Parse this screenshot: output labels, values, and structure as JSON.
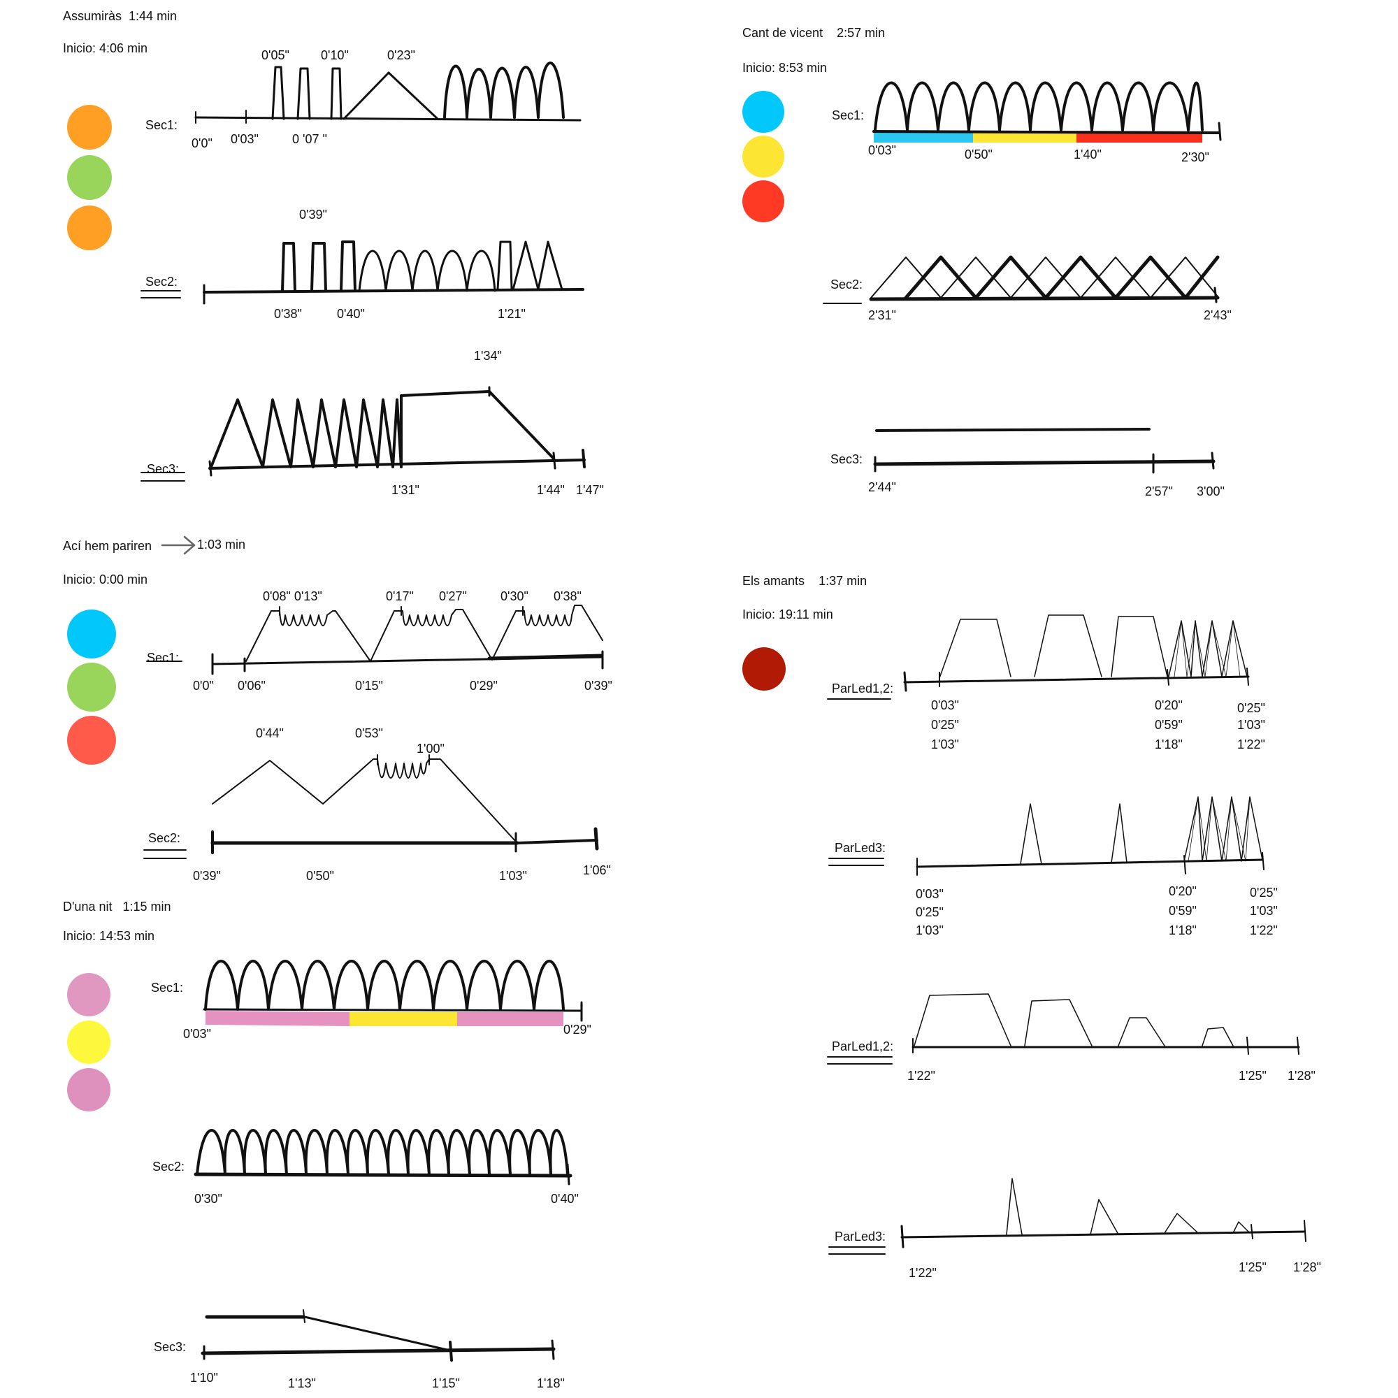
{
  "songs": [
    {
      "title": "Assumiràs",
      "duration": "1:44 min",
      "start": "Inicio: 4:06 min",
      "colors": [
        "#FF9F24",
        "#98D55A",
        "#FF9F24"
      ],
      "sections": [
        {
          "label": "Sec1:",
          "ticks": [
            "0'0\"",
            "0'03\"",
            "0 '07 \""
          ],
          "marks": [
            "0'05\"",
            "0'10\"",
            "0'23\""
          ]
        },
        {
          "label": "Sec2:",
          "ticks": [
            "0'38\"",
            "0'40\"",
            "1'21\""
          ],
          "marks": [
            "0'39\""
          ]
        },
        {
          "label": "Sec3:",
          "ticks": [
            "1'31\"",
            "1'44\"",
            "1'47\""
          ],
          "marks": [
            "1'34\""
          ]
        }
      ]
    },
    {
      "title": "Cant de vicent",
      "duration": "2:57 min",
      "start": "Inicio:  8:53 min",
      "colors": [
        "#00C8FA",
        "#FDE534",
        "#FF3A24"
      ],
      "sections": [
        {
          "label": "Sec1:",
          "ticks": [
            "0'03\"",
            "0'50\"",
            "1'40\"",
            "2'30\""
          ],
          "bands": [
            "#2CC7F0",
            "#FDE534",
            "#F8301C"
          ]
        },
        {
          "label": "Sec2:",
          "ticks": [
            "2'31\"",
            "2'43\""
          ]
        },
        {
          "label": "Sec3:",
          "ticks": [
            "2'44\"",
            "2'57\"",
            "3'00\""
          ]
        }
      ]
    },
    {
      "title": "Ací hem pariren",
      "duration": "1:03 min",
      "start": "Inicio: 0:00 min",
      "colors": [
        "#00C8FA",
        "#98D55A",
        "#FF5A4A"
      ],
      "sections": [
        {
          "label": "Sec1:",
          "ticks": [
            "0'0\"",
            "0'06\"",
            "0'15\"",
            "0'29\"",
            "0'39\""
          ],
          "marks": [
            "0'08\" 0'13\"",
            "0'17\"",
            "0'27\"",
            "0'30\"",
            "0'38\""
          ]
        },
        {
          "label": "Sec2:",
          "ticks": [
            "0'39\"",
            "0'50\"",
            "1'03\"",
            "1'06\""
          ],
          "marks": [
            "0'44\"",
            "0'53\"",
            "1'00\""
          ]
        }
      ]
    },
    {
      "title": "D'una nit",
      "duration": "1:15 min",
      "start": "Inicio: 14:53 min",
      "colors": [
        "#E097C0",
        "#FDF83C",
        "#DD91BC"
      ],
      "sections": [
        {
          "label": "Sec1:",
          "ticks": [
            "0'03\"",
            "0'29\""
          ],
          "bands": [
            "#E592C1",
            "#FDE534",
            "#E592C1"
          ]
        },
        {
          "label": "Sec2:",
          "ticks": [
            "0'30\"",
            "0'40\""
          ]
        },
        {
          "label": "Sec3:",
          "ticks": [
            "1'10\"",
            "1'13\"",
            "1'15\"",
            "1'18\""
          ]
        }
      ]
    },
    {
      "title": "Els amants",
      "duration": "1:37 min",
      "start": "Inicio:  19:11 min",
      "colors": [
        "#B11A05"
      ],
      "sections": [
        {
          "label": "ParLed1,2:",
          "ticks": [
            [
              "0'03\"",
              "0'25\"",
              "1'03\""
            ],
            [
              "0'20\"",
              "0'59\"",
              "1'18\""
            ],
            [
              "0'25\"",
              "1'03\"",
              "1'22\""
            ]
          ]
        },
        {
          "label": "ParLed3:",
          "ticks": [
            [
              "0'03\"",
              "0'25\"",
              "1'03\""
            ],
            [
              "0'20\"",
              "0'59\"",
              "1'18\""
            ],
            [
              "0'25\"",
              "1'03\"",
              "1'22\""
            ]
          ]
        },
        {
          "label": "ParLed1,2:",
          "ticks": [
            "1'22\"",
            "1'25\"",
            "1'28\""
          ]
        },
        {
          "label": "ParLed3:",
          "ticks": [
            "1'22\"",
            "1'25\"",
            "1'28\""
          ]
        }
      ]
    }
  ]
}
